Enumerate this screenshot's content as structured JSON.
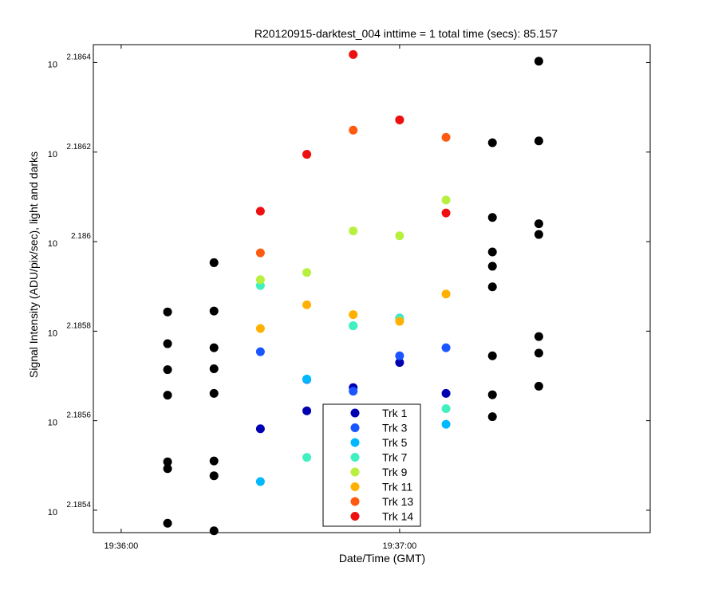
{
  "chart_data": {
    "type": "scatter",
    "title": "R20120915-darktest_004 inttime = 1 total time (secs): 85.157",
    "xlabel": "Date/Time (GMT)",
    "ylabel": "Signal Intensity (ADU/pix/sec), light and darks",
    "y_scale": "log",
    "y_tick_labels": [
      {
        "base": "10",
        "exp": "2.1854",
        "value": 2.1854
      },
      {
        "base": "10",
        "exp": "2.1856",
        "value": 2.1856
      },
      {
        "base": "10",
        "exp": "2.1858",
        "value": 2.1858
      },
      {
        "base": "10",
        "exp": "2.186",
        "value": 2.186
      },
      {
        "base": "10",
        "exp": "2.1862",
        "value": 2.1862
      },
      {
        "base": "10",
        "exp": "2.1864",
        "value": 2.1864
      }
    ],
    "y_exp_range": [
      2.18535,
      2.18644
    ],
    "x_tick_labels": [
      {
        "label": "19:36:00",
        "seconds": 0
      },
      {
        "label": "19:37:00",
        "seconds": 60
      }
    ],
    "x_range_seconds": [
      -6,
      114
    ],
    "grid": false,
    "legend_placement": "bottom-center",
    "series": [
      {
        "name": "Trk 1",
        "color": "#0000b0",
        "x": [
          30,
          40,
          50,
          60,
          70
        ],
        "y": [
          2.185582,
          2.185622,
          2.185674,
          2.18573,
          2.185661
        ]
      },
      {
        "name": "Trk 3",
        "color": "#1a55ff",
        "x": [
          30,
          40,
          50,
          60,
          70
        ],
        "y": [
          2.185754,
          2.185692,
          2.185666,
          2.185745,
          2.185763
        ]
      },
      {
        "name": "Trk 5",
        "color": "#00b8ff",
        "x": [
          30,
          40,
          50,
          60,
          70
        ],
        "y": [
          2.185464,
          2.185693,
          2.185812,
          2.185829,
          2.185592
        ]
      },
      {
        "name": "Trk 7",
        "color": "#40f0c0",
        "x": [
          30,
          40,
          50,
          60,
          70
        ],
        "y": [
          2.185902,
          2.185518,
          2.185812,
          2.185828,
          2.185627
        ]
      },
      {
        "name": "Trk 9",
        "color": "#b8f040",
        "x": [
          30,
          40,
          50,
          60,
          70
        ],
        "y": [
          2.185915,
          2.185931,
          2.186024,
          2.186013,
          2.186093
        ]
      },
      {
        "name": "Trk 11",
        "color": "#ffb000",
        "x": [
          30,
          40,
          50,
          60,
          70
        ],
        "y": [
          2.185806,
          2.185859,
          2.185837,
          2.185822,
          2.185883
        ]
      },
      {
        "name": "Trk 13",
        "color": "#ff5a10",
        "x": [
          30,
          40,
          50,
          60,
          70
        ],
        "y": [
          2.185975,
          2.186195,
          2.186249,
          2.186272,
          2.186233
        ]
      },
      {
        "name": "Trk 14",
        "color": "#ee1010",
        "x": [
          30,
          40,
          50,
          60,
          70
        ],
        "y": [
          2.186068,
          2.186195,
          2.186418,
          2.186272,
          2.186064
        ]
      }
    ],
    "dark_points": {
      "color": "#000000",
      "x": [
        10,
        10,
        10,
        10,
        10,
        10,
        10,
        20,
        20,
        20,
        20,
        20,
        20,
        20,
        20,
        80,
        80,
        80,
        80,
        80,
        80,
        80,
        80,
        90,
        90,
        90,
        90,
        90,
        90,
        90
      ],
      "y": [
        2.185843,
        2.185772,
        2.185714,
        2.185657,
        2.185508,
        2.185493,
        2.185371,
        2.185953,
        2.185845,
        2.185763,
        2.185716,
        2.185661,
        2.18551,
        2.185477,
        2.185354,
        2.186221,
        2.186054,
        2.185977,
        2.185945,
        2.185899,
        2.185745,
        2.185658,
        2.185609,
        2.186403,
        2.186225,
        2.18604,
        2.186016,
        2.185788,
        2.185751,
        2.185677
      ]
    }
  }
}
